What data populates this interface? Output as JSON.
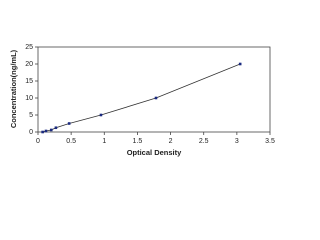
{
  "chart_data": {
    "type": "scatter",
    "x_label": "Optical Density",
    "y_label": "Concentration(ng/mL)",
    "x": [
      0.07,
      0.12,
      0.2,
      0.27,
      0.47,
      0.95,
      1.78,
      3.05
    ],
    "values": [
      0,
      0.3,
      0.6,
      1.25,
      2.5,
      5,
      10,
      20
    ],
    "color": "#1a2a80",
    "line": true,
    "xlim": [
      0,
      3.5
    ],
    "xticks": [
      0,
      0.5,
      1,
      1.5,
      2,
      2.5,
      3,
      3.5
    ],
    "ylim": [
      0,
      25
    ],
    "yticks": [
      0,
      5,
      10,
      15,
      20,
      25
    ]
  }
}
